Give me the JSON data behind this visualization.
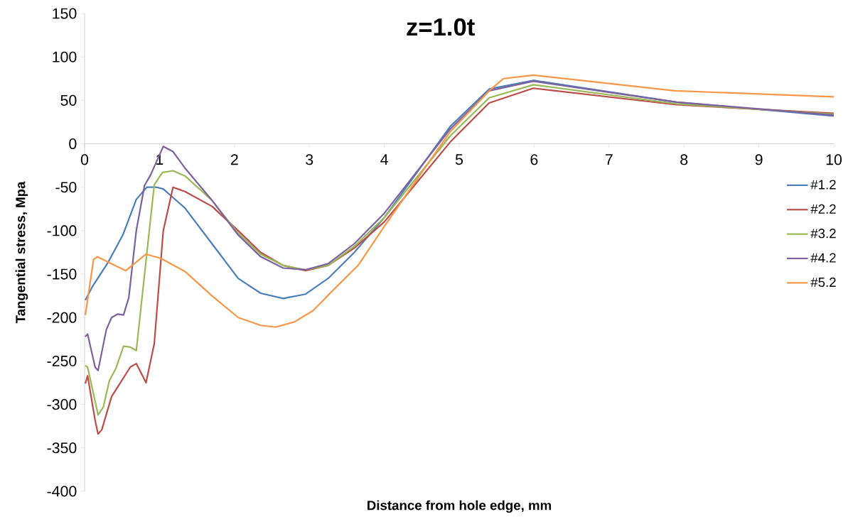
{
  "chart_data": {
    "type": "line",
    "title": "z=1.0t",
    "xlabel": "Distance from hole edge, mm",
    "ylabel": "Tangential stress, Mpa",
    "xlim": [
      0,
      10
    ],
    "ylim": [
      -400,
      150
    ],
    "xticks": [
      0,
      1,
      2,
      3,
      4,
      5,
      6,
      7,
      8,
      9,
      10
    ],
    "yticks": [
      -400,
      -350,
      -300,
      -250,
      -200,
      -150,
      -100,
      -50,
      0,
      50,
      100,
      150
    ],
    "grid": false,
    "legend": "right",
    "marker": "none",
    "line_style": "solid",
    "series": [
      {
        "name": "#1.2",
        "color": "#4a7ebb",
        "x": [
          0.01,
          0.1,
          0.31,
          0.51,
          0.69,
          0.83,
          0.96,
          1.05,
          1.34,
          1.7,
          2.05,
          2.35,
          2.65,
          2.95,
          3.25,
          3.6,
          4.0,
          4.88,
          5.4,
          5.99,
          7.9,
          10
        ],
        "values": [
          -180,
          -165,
          -137,
          -105,
          -64,
          -50,
          -50,
          -52,
          -74,
          -115,
          -155,
          -172,
          -178,
          -173,
          -155,
          -125,
          -85,
          20,
          63,
          73,
          48,
          32
        ]
      },
      {
        "name": "#2.2",
        "color": "#be4b48",
        "x": [
          0.01,
          0.04,
          0.14,
          0.18,
          0.23,
          0.36,
          0.61,
          0.69,
          0.82,
          0.93,
          1.05,
          1.18,
          1.34,
          1.7,
          2.05,
          2.35,
          2.65,
          2.95,
          3.25,
          3.6,
          4.0,
          4.88,
          5.4,
          5.99,
          7.9,
          10
        ],
        "values": [
          -276,
          -267,
          -318,
          -334,
          -329,
          -291,
          -257,
          -253,
          -275,
          -230,
          -100,
          -50,
          -55,
          -72,
          -100,
          -125,
          -140,
          -146,
          -140,
          -120,
          -90,
          2,
          47,
          64,
          45,
          35
        ]
      },
      {
        "name": "#3.2",
        "color": "#98b954",
        "x": [
          0.01,
          0.04,
          0.18,
          0.25,
          0.33,
          0.42,
          0.52,
          0.61,
          0.69,
          0.93,
          1.04,
          1.18,
          1.34,
          1.7,
          2.05,
          2.35,
          2.65,
          2.95,
          3.25,
          3.6,
          4.0,
          4.88,
          5.4,
          5.99,
          7.9,
          10
        ],
        "values": [
          -255,
          -257,
          -312,
          -303,
          -273,
          -258,
          -233,
          -234,
          -238,
          -47,
          -33,
          -31,
          -37,
          -65,
          -103,
          -127,
          -140,
          -145,
          -140,
          -118,
          -85,
          9,
          53,
          68,
          46,
          34
        ]
      },
      {
        "name": "#4.2",
        "color": "#7d60a0",
        "x": [
          0.01,
          0.04,
          0.14,
          0.18,
          0.29,
          0.36,
          0.44,
          0.52,
          0.59,
          0.69,
          0.8,
          0.88,
          1.05,
          1.18,
          1.34,
          1.7,
          2.05,
          2.35,
          2.65,
          2.95,
          3.25,
          3.6,
          4.0,
          4.88,
          5.4,
          5.99,
          7.9,
          10
        ],
        "values": [
          -222,
          -219,
          -257,
          -261,
          -214,
          -200,
          -196,
          -197,
          -177,
          -100,
          -48,
          -36,
          -3,
          -9,
          -28,
          -65,
          -105,
          -130,
          -143,
          -145,
          -138,
          -115,
          -80,
          17,
          61,
          72,
          48,
          33
        ]
      },
      {
        "name": "#5.2",
        "color": "#f79646",
        "x": [
          0.01,
          0.12,
          0.17,
          0.31,
          0.55,
          0.82,
          1.02,
          1.34,
          1.7,
          2.05,
          2.35,
          2.55,
          2.8,
          3.05,
          3.3,
          3.65,
          4.0,
          4.88,
          5.4,
          5.59,
          5.99,
          7.88,
          10
        ],
        "values": [
          -197,
          -133,
          -130,
          -136,
          -146,
          -127,
          -132,
          -147,
          -175,
          -200,
          -209,
          -211,
          -205,
          -192,
          -170,
          -140,
          -95,
          14,
          61,
          75,
          79,
          61,
          54
        ]
      }
    ]
  }
}
